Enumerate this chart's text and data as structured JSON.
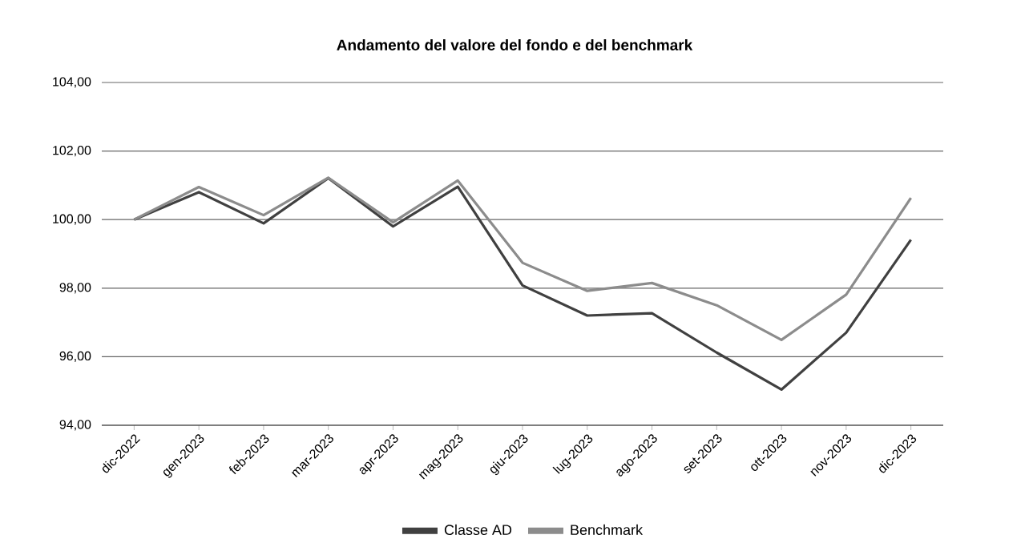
{
  "chart_data": {
    "type": "line",
    "title": "Andamento del valore del fondo e del benchmark",
    "categories": [
      "dic-2022",
      "gen-2023",
      "feb-2023",
      "mar-2023",
      "apr-2023",
      "mag-2023",
      "giu-2023",
      "lug-2023",
      "ago-2023",
      "set-2023",
      "ott-2023",
      "nov-2023",
      "dic-2023"
    ],
    "series": [
      {
        "name": "Classe AD",
        "color": "#404040",
        "values": [
          100.0,
          100.8,
          99.89,
          101.21,
          99.8,
          100.96,
          98.08,
          97.2,
          97.27,
          96.12,
          95.04,
          96.7,
          99.41
        ]
      },
      {
        "name": "Benchmark",
        "color": "#8c8c8c",
        "values": [
          100.0,
          100.95,
          100.13,
          101.22,
          99.92,
          101.14,
          98.74,
          97.92,
          98.15,
          97.5,
          96.49,
          97.81,
          100.63
        ]
      }
    ],
    "ylim": [
      94,
      104
    ],
    "yticks": [
      {
        "value": 94,
        "label": "94,00"
      },
      {
        "value": 96,
        "label": "96,00"
      },
      {
        "value": 98,
        "label": "98,00"
      },
      {
        "value": 100,
        "label": "100,00"
      },
      {
        "value": 102,
        "label": "102,00"
      },
      {
        "value": 104,
        "label": "104,00"
      }
    ],
    "grid": "y",
    "legend": "bottom",
    "marker": "none",
    "line_style": "solid"
  }
}
